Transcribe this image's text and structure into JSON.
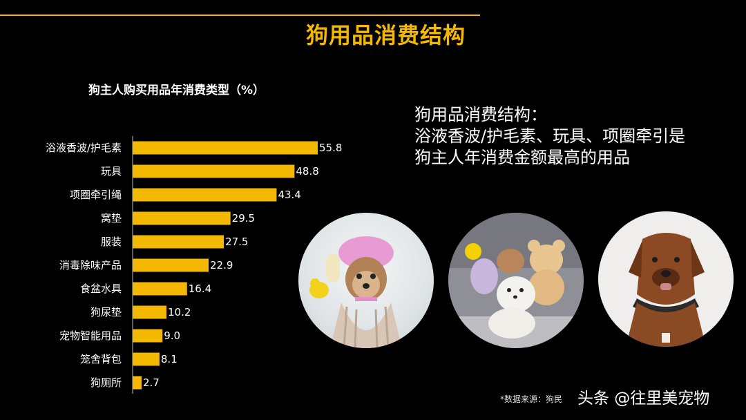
{
  "title": "狗用品消费结构",
  "summary": {
    "lines": [
      "狗用品消费结构：",
      "浴液香波/护毛素、玩具、项圈牵引是",
      "狗主人年消费金额最高的用品"
    ]
  },
  "source": "*数据来源：狗民",
  "watermark": "头条 @往里美宠物",
  "colors": {
    "accent": "#f5b800",
    "background": "#000000"
  },
  "photos": [
    "dog-with-shower-cap",
    "dog-with-plush-toys",
    "dog-with-collar"
  ],
  "chart_data": {
    "type": "bar",
    "orientation": "horizontal",
    "title": "狗主人购买用品年消费类型（%）",
    "categories": [
      "浴液香波/护毛素",
      "玩具",
      "项圈牵引绳",
      "窝垫",
      "服装",
      "消毒除味产品",
      "食盆水具",
      "狗尿垫",
      "宠物智能用品",
      "笼舍背包",
      "狗厕所"
    ],
    "values": [
      55.8,
      48.8,
      43.4,
      29.5,
      27.5,
      22.9,
      16.4,
      10.2,
      9.0,
      8.1,
      2.7
    ],
    "value_labels": [
      "55.8",
      "48.8",
      "43.4",
      "29.5",
      "27.5",
      "22.9",
      "16.4",
      "10.2",
      "9.0",
      "8.1",
      "2.7"
    ],
    "xlim": [
      0,
      55.8
    ],
    "grid": false,
    "legend": "none"
  }
}
